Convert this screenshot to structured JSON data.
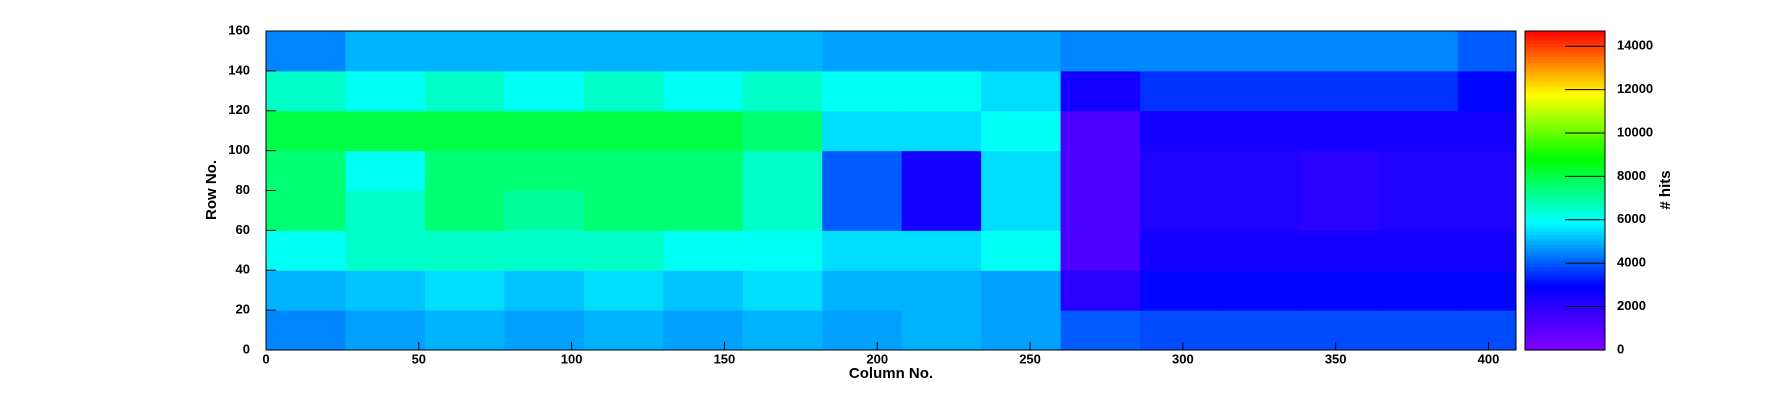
{
  "chart_data": {
    "type": "heatmap",
    "xlabel": "Column No.",
    "ylabel": "Row No.",
    "zlabel": "# hits",
    "xbins": [
      0,
      26,
      52,
      78,
      104,
      130,
      156,
      182,
      208,
      234,
      260,
      286,
      312,
      338,
      364,
      390,
      409
    ],
    "ybins": [
      0,
      20,
      40,
      60,
      80,
      100,
      120,
      140,
      160
    ],
    "z": [
      [
        4500,
        4800,
        5000,
        4800,
        5000,
        4800,
        5000,
        4800,
        5000,
        4800,
        4000,
        3800,
        3800,
        3800,
        3800,
        3800
      ],
      [
        5000,
        5200,
        5500,
        5200,
        5500,
        5200,
        5500,
        5000,
        5000,
        4800,
        2000,
        3000,
        3000,
        3000,
        3000,
        3000
      ],
      [
        6000,
        6500,
        6500,
        6500,
        6500,
        6000,
        6000,
        5500,
        5500,
        6000,
        1200,
        2500,
        2500,
        2500,
        2500,
        2500
      ],
      [
        7500,
        6500,
        7500,
        7000,
        7500,
        7500,
        6500,
        4000,
        2500,
        5500,
        1200,
        2200,
        2200,
        2000,
        2200,
        2200
      ],
      [
        7500,
        6000,
        7500,
        7500,
        7500,
        7500,
        6500,
        4000,
        2500,
        5500,
        1200,
        2200,
        2200,
        2000,
        2200,
        2200
      ],
      [
        8000,
        8000,
        8000,
        8000,
        8000,
        8000,
        7500,
        5500,
        5500,
        6000,
        1200,
        2500,
        2500,
        2500,
        2500,
        2500
      ],
      [
        6500,
        6000,
        6500,
        6000,
        6500,
        6000,
        6500,
        6000,
        6000,
        5500,
        2500,
        3500,
        3500,
        3500,
        3500,
        3000
      ],
      [
        4500,
        5000,
        5000,
        5000,
        5000,
        5000,
        5000,
        4800,
        4800,
        4800,
        4500,
        4500,
        4500,
        4500,
        4500,
        4000
      ]
    ],
    "xlim": [
      0,
      409
    ],
    "xticks": [
      0,
      50,
      100,
      150,
      200,
      250,
      300,
      350,
      400
    ],
    "ylim": [
      0,
      160
    ],
    "yticks": [
      0,
      20,
      40,
      60,
      80,
      100,
      120,
      140,
      160
    ],
    "zlim": [
      0,
      14700
    ],
    "zticks": [
      0,
      2000,
      4000,
      6000,
      8000,
      10000,
      12000,
      14000
    ],
    "colormap": [
      "#8000ff",
      "#0000ff",
      "#00ffff",
      "#00ff00",
      "#ffff00",
      "#ff0000"
    ]
  }
}
